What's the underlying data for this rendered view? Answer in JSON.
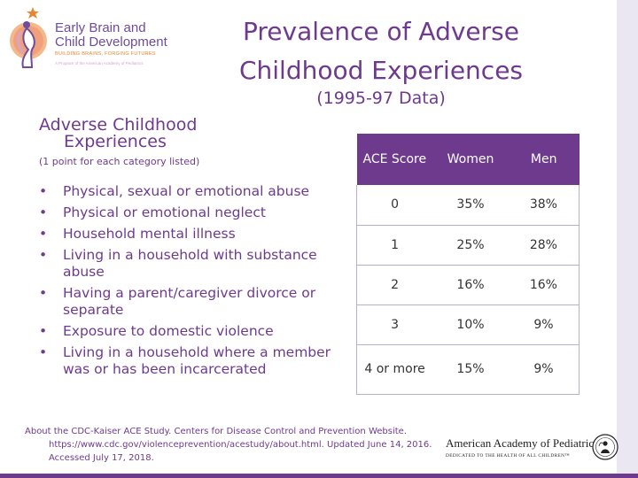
{
  "logo": {
    "name_line1": "Early Brain and",
    "name_line2": "Child Development",
    "tagline": "BUILDING BRAINS, FORGING FUTURES",
    "subline": "A Program of the American Academy of Pediatrics"
  },
  "title": {
    "line1": "Prevalence of Adverse",
    "line2": "Childhood Experiences",
    "subtitle": "(1995-97 Data)"
  },
  "section": {
    "heading_line1": "Adverse Childhood",
    "heading_line2": "Experiences",
    "note": "(1 point for each category listed)",
    "bullet_glyph": "•",
    "items": [
      "Physical, sexual or emotional abuse",
      "Physical or emotional neglect",
      "Household mental illness",
      "Living in a household with  substance abuse",
      "Having a parent/caregiver divorce or separate",
      "Exposure to domestic violence",
      "Living in a household where  a member was or has been incarcerated"
    ]
  },
  "table": {
    "headers": [
      "ACE Score",
      "Women",
      "Men"
    ],
    "rows": [
      [
        "0",
        "35%",
        "38%"
      ],
      [
        "1",
        "25%",
        "28%"
      ],
      [
        "2",
        "16%",
        "16%"
      ],
      [
        "3",
        "10%",
        "9%"
      ],
      [
        "4 or more",
        "15%",
        "9%"
      ]
    ]
  },
  "citation": {
    "line1": "About the CDC-Kaiser ACE Study. Centers for Disease Control and Prevention Website.",
    "line2": "https://www.cdc.gov/violenceprevention/acestudy/about.html. Updated June 14, 2016.",
    "line3": "Accessed July 17, 2018."
  },
  "aap": {
    "name": "American Academy of Pediatrics",
    "tagline": "DEDICATED TO THE HEALTH OF ALL CHILDREN™"
  },
  "colors": {
    "primary": "#6e3a8e",
    "logo_purple": "#6e4c9e",
    "logo_orange": "#e8862f"
  }
}
